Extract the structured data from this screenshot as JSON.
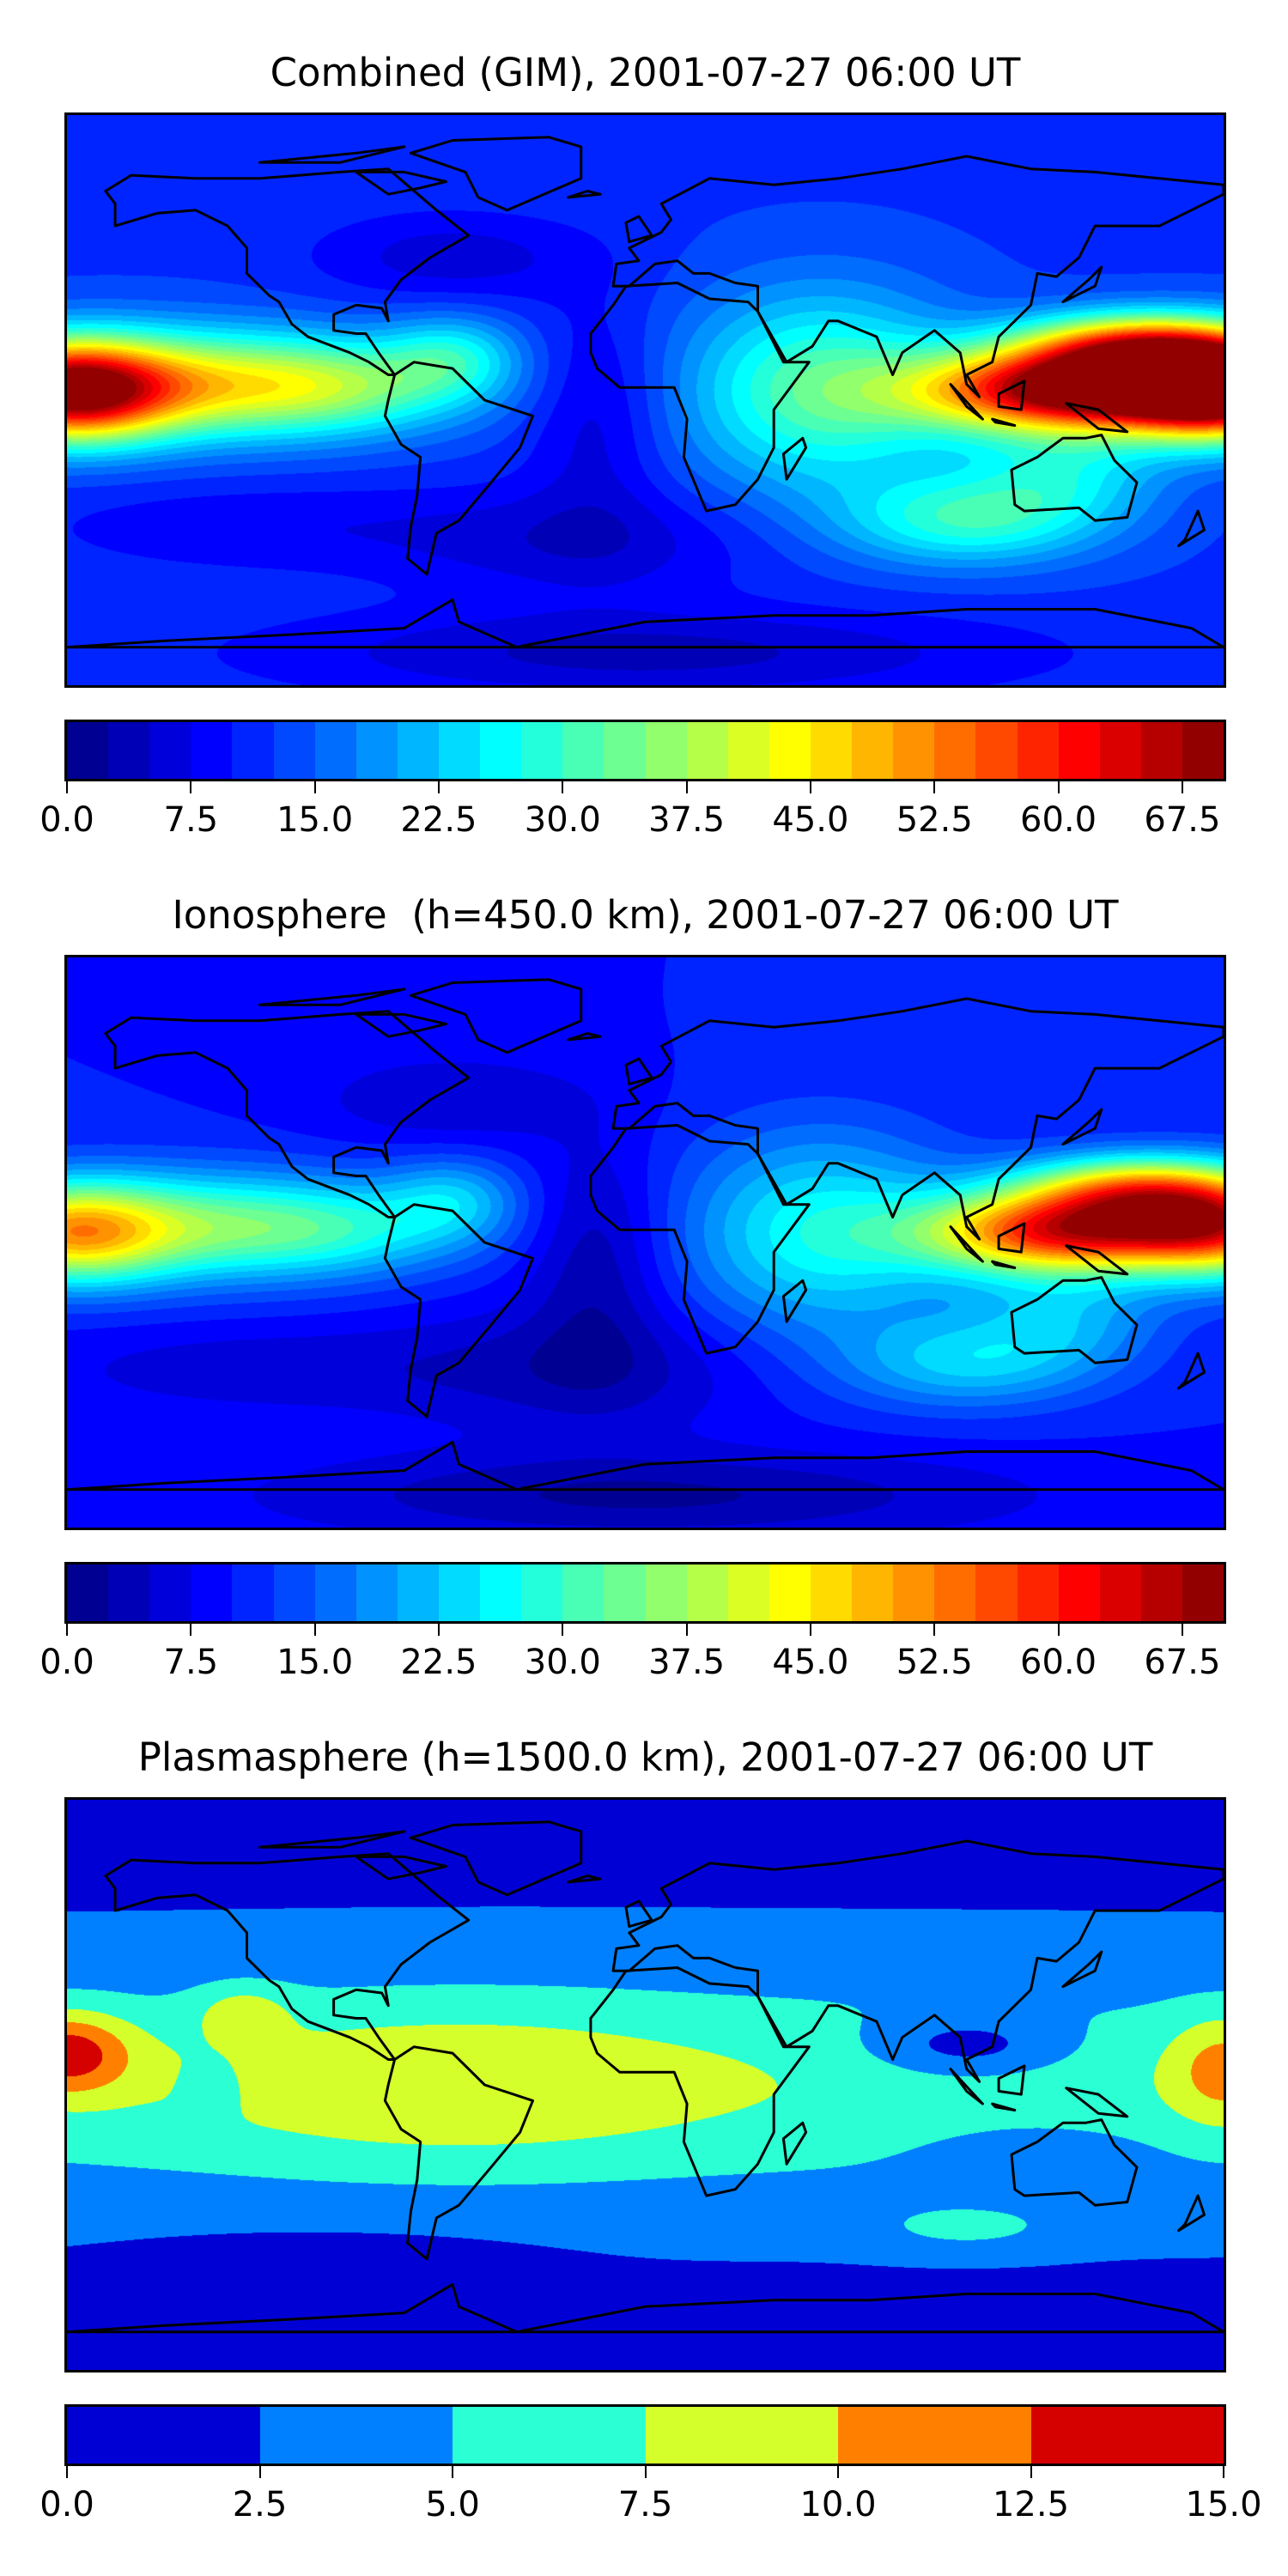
{
  "chart_data": [
    {
      "type": "heatmap",
      "title": "Combined (GIM), 2001-07-27 06:00 UT",
      "projection": "world map with coastlines",
      "colorbar": {
        "min": 0,
        "max": 70,
        "step": 2.5,
        "ticks": [
          "0.0",
          "7.5",
          "15.0",
          "22.5",
          "30.0",
          "37.5",
          "45.0",
          "52.5",
          "60.0",
          "67.5"
        ]
      },
      "features": [
        "maximum (about 60) in the equatorial western Pacific at the left edge",
        "orange band (50-60) over Southeast Asia / Indonesia",
        "cyan-green over Africa, Indian Ocean and Australia",
        "minimum (0-10) over the southern Atlantic and Antarctica"
      ]
    },
    {
      "type": "heatmap",
      "title": "Ionosphere  (h=450.0 km), 2001-07-27 06:00 UT",
      "projection": "world map with coastlines",
      "colorbar": {
        "min": 0,
        "max": 70,
        "step": 2.5,
        "ticks": [
          "0.0",
          "7.5",
          "15.0",
          "22.5",
          "30.0",
          "37.5",
          "45.0",
          "52.5",
          "60.0",
          "67.5"
        ]
      },
      "features": [
        "maximum (about 55) over Indonesia",
        "yellow-green band (35-45) in the central Pacific",
        "minimum (0-7.5) over the Atlantic and Antarctica"
      ]
    },
    {
      "type": "heatmap",
      "title": "Plasmasphere (h=1500.0 km), 2001-07-27 06:00 UT",
      "projection": "world map with coastlines",
      "colorbar": {
        "min": 0,
        "max": 15,
        "step": 2.5,
        "ticks": [
          "0.0",
          "2.5",
          "5.0",
          "7.5",
          "10.0",
          "12.5",
          "15.0"
        ]
      },
      "features": [
        "maximum (12.5-15) at the western Pacific left edge",
        "7.5-10 band over the Americas",
        "0-2.5 at high latitudes"
      ]
    }
  ]
}
